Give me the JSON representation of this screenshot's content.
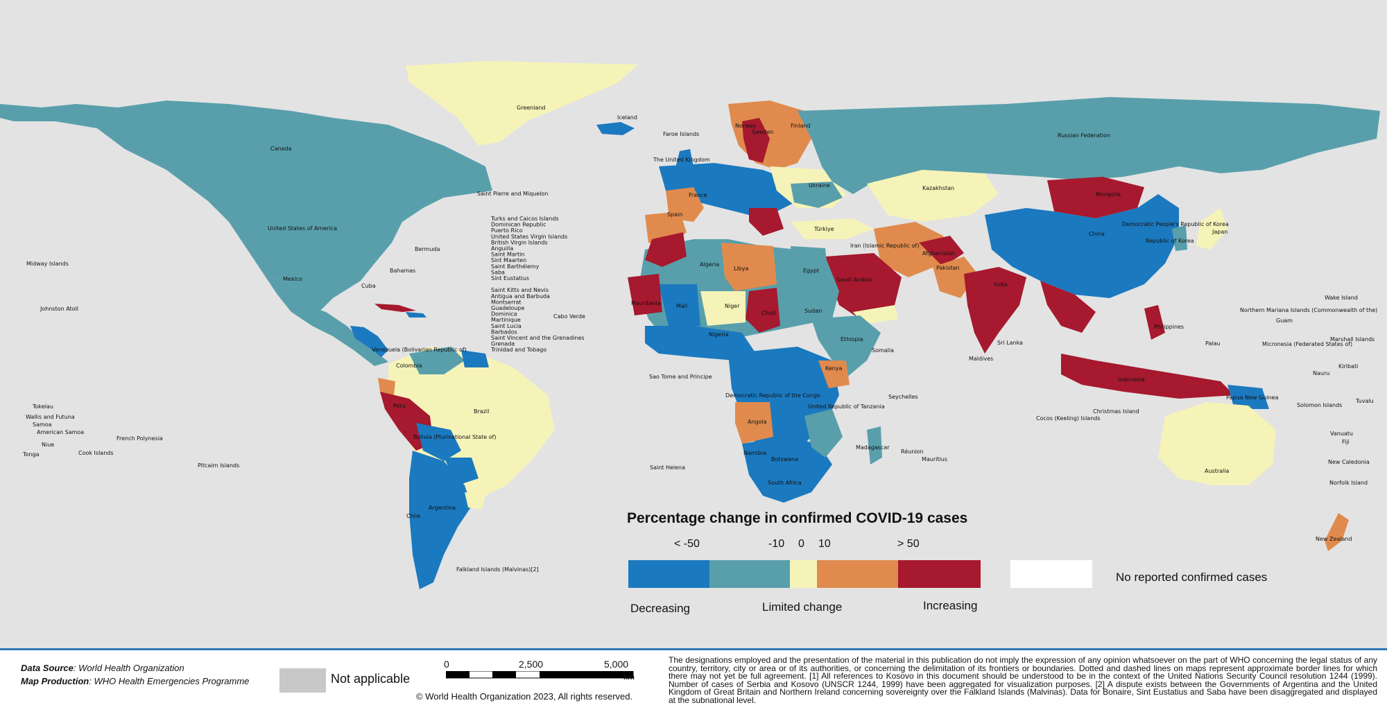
{
  "legend": {
    "title": "Percentage change in confirmed COVID-19 cases",
    "ticks": [
      "< -50",
      "-10",
      "0",
      "10",
      "> 50"
    ],
    "classes": [
      {
        "color": "#1b79bf",
        "label": "Decreasing"
      },
      {
        "color": "#589fab",
        "label": ""
      },
      {
        "color": "#f6f3b8",
        "label": "Limited change"
      },
      {
        "color": "#e08b4d",
        "label": ""
      },
      {
        "color": "#a6192e",
        "label": "Increasing"
      }
    ],
    "no_cases": {
      "color": "#ffffff",
      "label": "No reported confirmed cases"
    }
  },
  "colors": {
    "background": "#e3e3e3",
    "decreasing": "#1b79bf",
    "slight_decrease": "#589fab",
    "limited": "#f6f3b8",
    "slight_increase": "#e08b4d",
    "increasing": "#a6192e",
    "not_applicable": "#c8c8c8",
    "footer_line": "#2e75b6"
  },
  "footer": {
    "data_source_label": "Data Source",
    "data_source_value": ": World Health Organization",
    "map_production_label": "Map Production",
    "map_production_value": ": WHO Health Emergencies Programme",
    "not_applicable": "Not applicable",
    "scale_ticks": [
      "0",
      "2,500",
      "5,000"
    ],
    "scale_unit": "km",
    "copyright": "© World Health Organization  2023,  All rights reserved.",
    "disclaimer": "The designations employed and the presentation of the material in this publication do not imply the expression of any opinion whatsoever on the part of WHO concerning the legal status of any country, territory, city or area or of its authorities, or concerning the delimitation of its frontiers or boundaries. Dotted and dashed lines on maps represent approximate border lines for which there may not yet be full agreement. [1] All references to Kosovo in this document should be understood to be in the context of the United Nations Security Council resolution 1244 (1999). Number of cases of Serbia and Kosovo (UNSCR 1244, 1999) have been aggregated for visualization purposes. [2] A dispute exists between the Governments of Argentina and the United Kingdom of Great Britain and Northern Ireland concerning sovereignty over the Falkland Islands (Malvinas). Data for Bonaire, Sint Eustatius and Saba have been disaggregated and displayed at the subnational level."
  },
  "map_labels": {
    "greenland": "Greenland",
    "iceland": "Iceland",
    "canada": "Canada",
    "usa": "United States of America",
    "mexico": "Mexico",
    "russia": "Russian Federation",
    "kazakhstan": "Kazakhstan",
    "mongolia": "Mongolia",
    "china": "China",
    "india": "India",
    "japan": "Japan",
    "australia": "Australia",
    "new_zealand": "New Zealand",
    "brazil": "Brazil",
    "argentina": "Argentina",
    "peru": "Peru",
    "bolivia": "Bolivia (Plurinational State of)",
    "colombia": "Colombia",
    "chile": "Chile",
    "venezuela": "Venezuela (Bolivarian Republic of)",
    "algeria": "Algeria",
    "libya": "Libya",
    "egypt": "Egypt",
    "sudan": "Sudan",
    "chad": "Chad",
    "niger": "Niger",
    "mali": "Mali",
    "mauritania": "Mauritania",
    "nigeria": "Nigeria",
    "ethiopia": "Ethiopia",
    "somalia": "Somalia",
    "kenya": "Kenya",
    "drc": "Democratic Republic of the Congo",
    "tanzania": "United Republic of Tanzania",
    "angola": "Angola",
    "namibia": "Namibia",
    "botswana": "Botswana",
    "south_africa": "South Africa",
    "madagascar": "Madagascar",
    "saudi_arabia": "Saudi Arabia",
    "iran": "Iran (Islamic Republic of)",
    "pakistan": "Pakistan",
    "afghanistan": "Afghanistan",
    "turkiye": "Türkiye",
    "ukraine": "Ukraine",
    "finland": "Finland",
    "sweden": "Sweden",
    "norway": "Norway",
    "france": "France",
    "spain": "Spain",
    "indonesia": "Indonesia",
    "philippines": "Philippines",
    "png": "Papua New Guinea",
    "uk": "The United Kingdom",
    "dprk": "Democratic People's Republic of Korea",
    "rok": "Republic of Korea",
    "faroe": "Faroe Islands",
    "spm": "Saint Pierre and Miquelon",
    "bermuda": "Bermuda",
    "bahamas": "Bahamas",
    "cuba": "Cuba",
    "midway": "Midway Islands",
    "johnston": "Johnston Atoll",
    "french_polynesia": "French Polynesia",
    "pitcairn": "Pitcairn Islands",
    "saint_helena": "Saint Helena",
    "cabo_verde": "Cabo Verde",
    "falklands": "Falkland Islands (Malvinas)[2]",
    "sri_lanka": "Sri Lanka",
    "maldives": "Maldives",
    "seychelles": "Seychelles",
    "mauritius": "Mauritius",
    "reunion": "Réunion",
    "guam": "Guam",
    "nmi": "Northern Mariana Islands (Commonwealth of the)",
    "wake": "Wake Island",
    "micronesia": "Micronesia (Federated States of)",
    "marshall": "Marshall Islands",
    "kiribati": "Kiribati",
    "nauru": "Nauru",
    "solomon": "Solomon Islands",
    "tuvalu": "Tuvalu",
    "vanuatu": "Vanuatu",
    "fiji": "Fiji",
    "new_caledonia": "New Caledonia",
    "norfolk": "Norfolk Island",
    "palau": "Palau",
    "tokelau": "Tokelau",
    "wallis": "Wallis and Futuna",
    "samoa": "Samoa",
    "american_samoa": "American Samoa",
    "niue": "Niue",
    "tonga": "Tonga",
    "cook": "Cook Islands",
    "christmas": "Christmas Island",
    "cocos": "Cocos (Keeling) Islands",
    "sao_tome": "Sao Tome and Principe",
    "caribbean_list": [
      "Turks and Caicos Islands",
      "Dominican Republic",
      "Puerto Rico",
      "United States Virgin Islands",
      "British Virgin Islands",
      "Anguilla",
      "Saint Martin",
      "Sint Maarten",
      "Saint Barthélemy",
      "Saba",
      "Sint Eustatius",
      "",
      "Saint Kitts and Nevis",
      "Antigua and Barbuda",
      "Montserrat",
      "Guadeloupe",
      "Dominica",
      "Martinique",
      "Saint Lucia",
      "Barbados",
      "Saint Vincent and the Grenadines",
      "Grenada",
      "Trinidad and Tobago"
    ]
  }
}
